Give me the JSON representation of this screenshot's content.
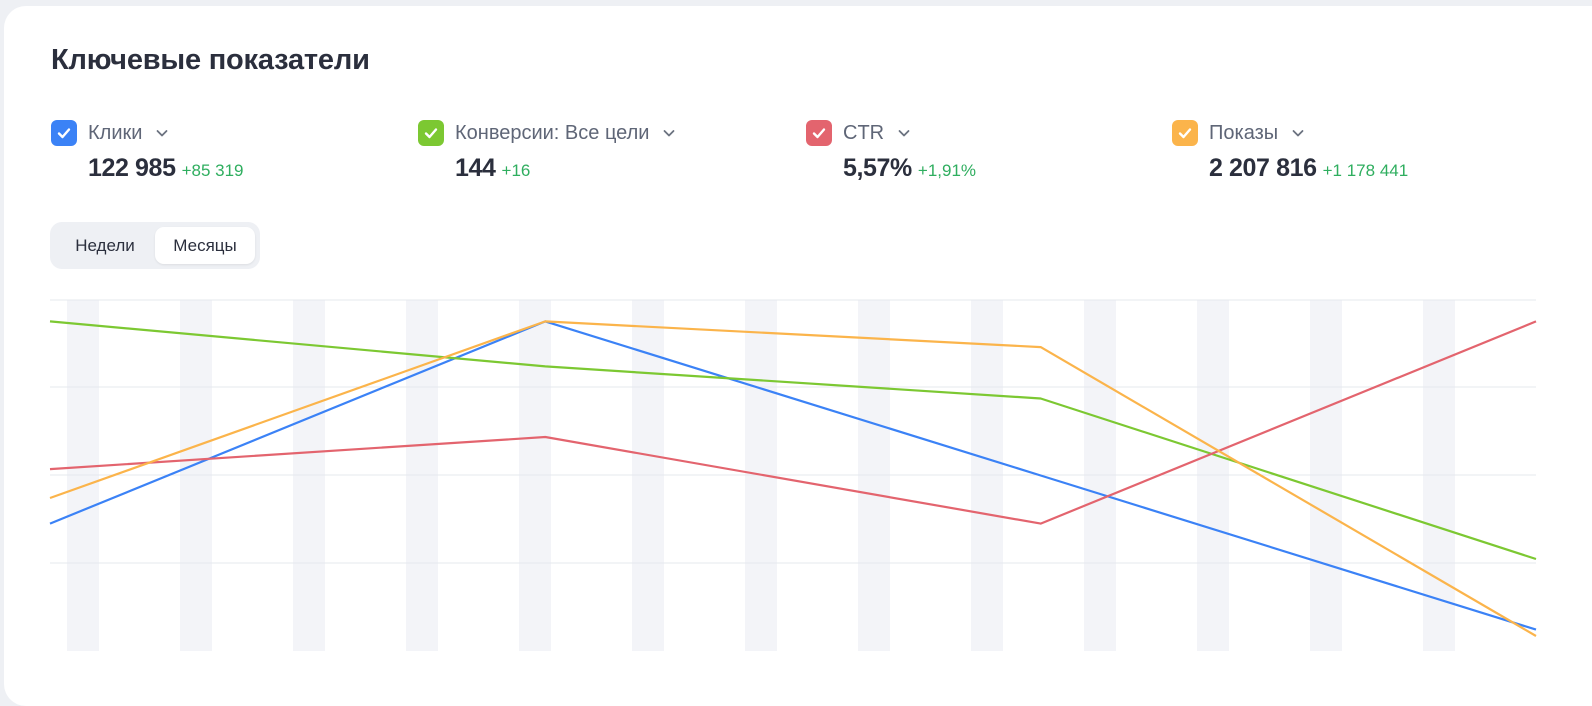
{
  "header": {
    "title": "Ключевые показатели"
  },
  "metrics": [
    {
      "id": "clicks",
      "name": "Клики",
      "value": "122 985",
      "delta": "+85 319",
      "color": "#3b82f6",
      "checked": true,
      "icon": "chevron-down-icon"
    },
    {
      "id": "conversions",
      "name": "Конверсии: Все цели",
      "value": "144",
      "delta": "+16",
      "color": "#7cc832",
      "checked": true,
      "icon": "chevron-down-icon"
    },
    {
      "id": "ctr",
      "name": "CTR",
      "value": "5,57%",
      "delta": "+1,91%",
      "color": "#e3646e",
      "checked": true,
      "icon": "chevron-down-icon"
    },
    {
      "id": "impressions",
      "name": "Показы",
      "value": "2 207 816",
      "delta": "+1 178 441",
      "color": "#fbb44b",
      "checked": true,
      "icon": "chevron-down-icon"
    }
  ],
  "period_toggle": {
    "weeks_label": "Недели",
    "months_label": "Месяцы",
    "selected": "months"
  },
  "chart_data": {
    "type": "line",
    "x": [
      0,
      1,
      2,
      3
    ],
    "ylim": [
      0,
      1
    ],
    "grid": true,
    "legend": "top",
    "note_values": "normalized per series (no axis labels shown)",
    "series": [
      {
        "name": "Клики",
        "color": "#3b82f6",
        "values": [
          0.35,
          0.98,
          0.5,
          0.02
        ]
      },
      {
        "name": "Конверсии: Все цели",
        "color": "#7cc832",
        "values": [
          0.98,
          0.84,
          0.74,
          0.24
        ]
      },
      {
        "name": "CTR",
        "color": "#e3646e",
        "values": [
          0.52,
          0.62,
          0.35,
          0.98
        ]
      },
      {
        "name": "Показы",
        "color": "#fbb44b",
        "values": [
          0.43,
          0.98,
          0.9,
          0.0
        ]
      }
    ]
  }
}
